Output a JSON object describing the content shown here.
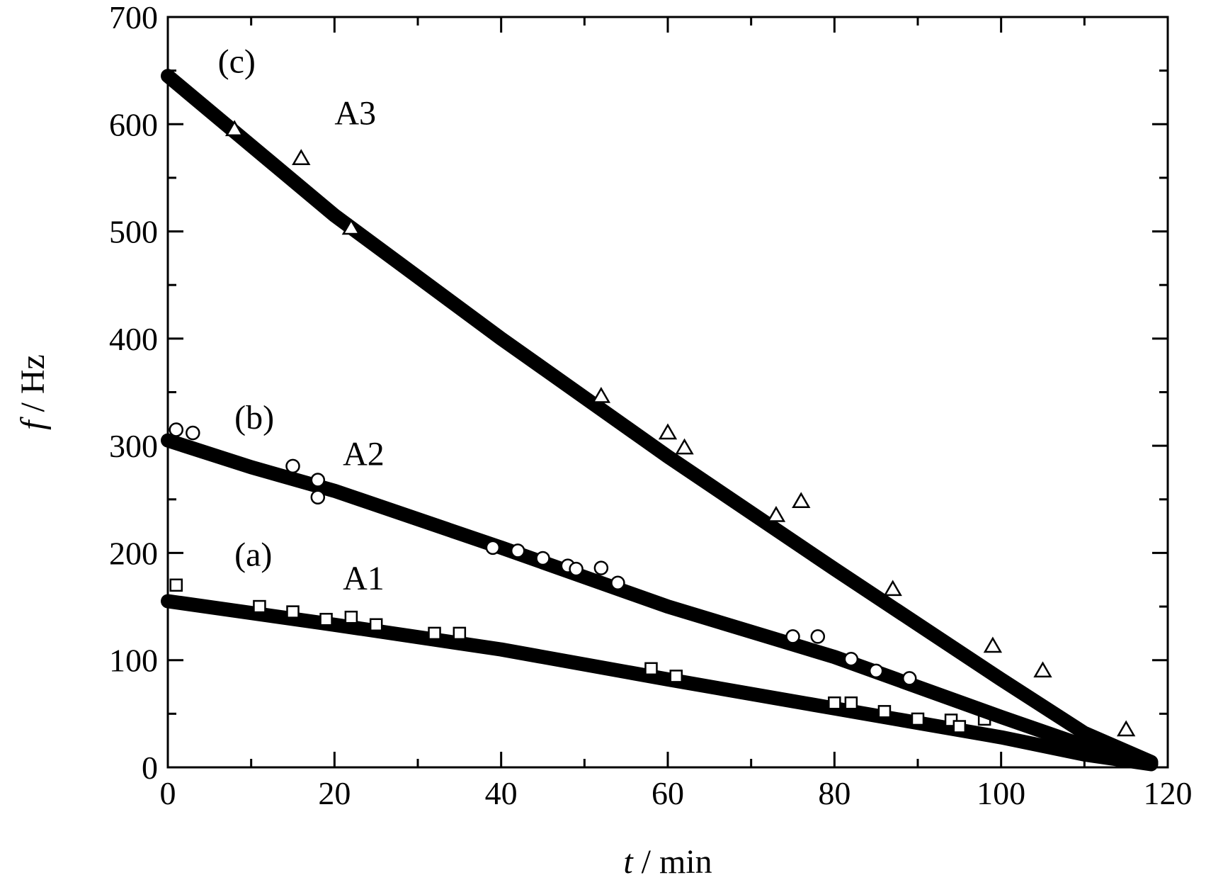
{
  "chart_data": {
    "type": "scatter",
    "xlabel": {
      "symbol": "t",
      "rest": " / min"
    },
    "ylabel": {
      "symbol": "f",
      "rest": " / Hz"
    },
    "xlim": [
      0,
      120
    ],
    "ylim": [
      0,
      700
    ],
    "xticks": [
      0,
      20,
      40,
      60,
      80,
      100,
      120
    ],
    "yticks": [
      0,
      100,
      200,
      300,
      400,
      500,
      600,
      700
    ],
    "grid": false,
    "series": [
      {
        "name": "A1",
        "panel": "(a)",
        "marker": "square",
        "fit_line": [
          [
            0,
            155
          ],
          [
            20,
            133
          ],
          [
            40,
            110
          ],
          [
            60,
            82
          ],
          [
            80,
            55
          ],
          [
            100,
            28
          ],
          [
            110,
            12
          ],
          [
            118,
            3
          ]
        ],
        "points": [
          [
            1,
            170
          ],
          [
            11,
            150
          ],
          [
            15,
            145
          ],
          [
            19,
            138
          ],
          [
            22,
            140
          ],
          [
            25,
            133
          ],
          [
            32,
            125
          ],
          [
            35,
            125
          ],
          [
            58,
            92
          ],
          [
            61,
            85
          ],
          [
            80,
            60
          ],
          [
            82,
            60
          ],
          [
            86,
            52
          ],
          [
            90,
            45
          ],
          [
            94,
            44
          ],
          [
            95,
            38
          ],
          [
            98,
            45
          ]
        ]
      },
      {
        "name": "A2",
        "panel": "(b)",
        "marker": "circle",
        "fit_line": [
          [
            0,
            305
          ],
          [
            10,
            280
          ],
          [
            20,
            258
          ],
          [
            40,
            205
          ],
          [
            60,
            150
          ],
          [
            80,
            103
          ],
          [
            100,
            47
          ],
          [
            110,
            20
          ],
          [
            118,
            4
          ]
        ],
        "points": [
          [
            1,
            315
          ],
          [
            3,
            312
          ],
          [
            15,
            281
          ],
          [
            18,
            268
          ],
          [
            18,
            252
          ],
          [
            39,
            205
          ],
          [
            42,
            202
          ],
          [
            45,
            195
          ],
          [
            48,
            188
          ],
          [
            49,
            185
          ],
          [
            52,
            186
          ],
          [
            54,
            172
          ],
          [
            75,
            122
          ],
          [
            78,
            122
          ],
          [
            82,
            101
          ],
          [
            85,
            90
          ],
          [
            89,
            83
          ]
        ]
      },
      {
        "name": "A3",
        "panel": "(c)",
        "marker": "triangle",
        "fit_line": [
          [
            0,
            645
          ],
          [
            20,
            515
          ],
          [
            40,
            400
          ],
          [
            60,
            290
          ],
          [
            80,
            185
          ],
          [
            100,
            82
          ],
          [
            110,
            32
          ],
          [
            118,
            5
          ]
        ],
        "points": [
          [
            8,
            595
          ],
          [
            16,
            568
          ],
          [
            22,
            503
          ],
          [
            52,
            346
          ],
          [
            60,
            312
          ],
          [
            62,
            298
          ],
          [
            73,
            235
          ],
          [
            76,
            248
          ],
          [
            87,
            166
          ],
          [
            99,
            113
          ],
          [
            105,
            90
          ],
          [
            115,
            35
          ]
        ]
      }
    ],
    "annotations": [
      {
        "text": "(c)",
        "x": 6,
        "y": 648
      },
      {
        "text": "A3",
        "x": 20,
        "y": 600
      },
      {
        "text": "(b)",
        "x": 8,
        "y": 316
      },
      {
        "text": "A2",
        "x": 21,
        "y": 282
      },
      {
        "text": "(a)",
        "x": 8,
        "y": 188
      },
      {
        "text": "A1",
        "x": 21,
        "y": 166
      }
    ]
  }
}
